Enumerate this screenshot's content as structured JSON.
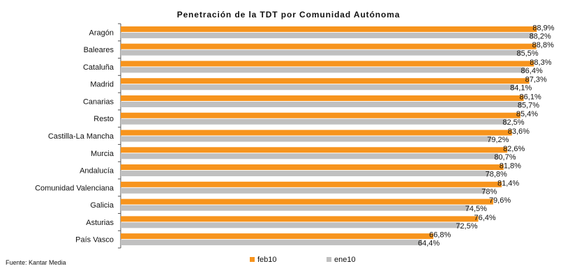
{
  "chart_data": {
    "type": "bar",
    "orientation": "horizontal",
    "title": "Penetración de la TDT por Comunidad Autónoma",
    "xlabel": "",
    "ylabel": "",
    "xlim": [
      0,
      89
    ],
    "grid": false,
    "legend_position": "bottom",
    "categories": [
      "Aragón",
      "Baleares",
      "Cataluña",
      "Madrid",
      "Canarias",
      "Resto",
      "Castilla-La Mancha",
      "Murcia",
      "Andalucía",
      "Comunidad Valenciana",
      "Galicia",
      "Asturias",
      "País Vasco"
    ],
    "series": [
      {
        "name": "feb10",
        "color": "#f7941d",
        "values": [
          88.9,
          88.8,
          88.3,
          87.3,
          86.1,
          85.4,
          83.6,
          82.6,
          81.8,
          81.4,
          79.6,
          76.4,
          66.8
        ],
        "labels": [
          "88,9%",
          "88,8%",
          "88,3%",
          "87,3%",
          "86,1%",
          "85,4%",
          "83,6%",
          "82,6%",
          "81,8%",
          "81,4%",
          "79,6%",
          "76,4%",
          "66,8%"
        ]
      },
      {
        "name": "ene10",
        "color": "#c0c0c0",
        "values": [
          88.2,
          85.5,
          86.4,
          84.1,
          85.7,
          82.5,
          79.2,
          80.7,
          78.8,
          78,
          74.5,
          72.5,
          64.4
        ],
        "labels": [
          "88,2%",
          "85,5%",
          "86,4%",
          "84,1%",
          "85,7%",
          "82,5%",
          "79,2%",
          "80,7%",
          "78,8%",
          "78%",
          "74,5%",
          "72,5%",
          "64,4%"
        ]
      }
    ]
  },
  "source": "Fuente: Kantar Media"
}
